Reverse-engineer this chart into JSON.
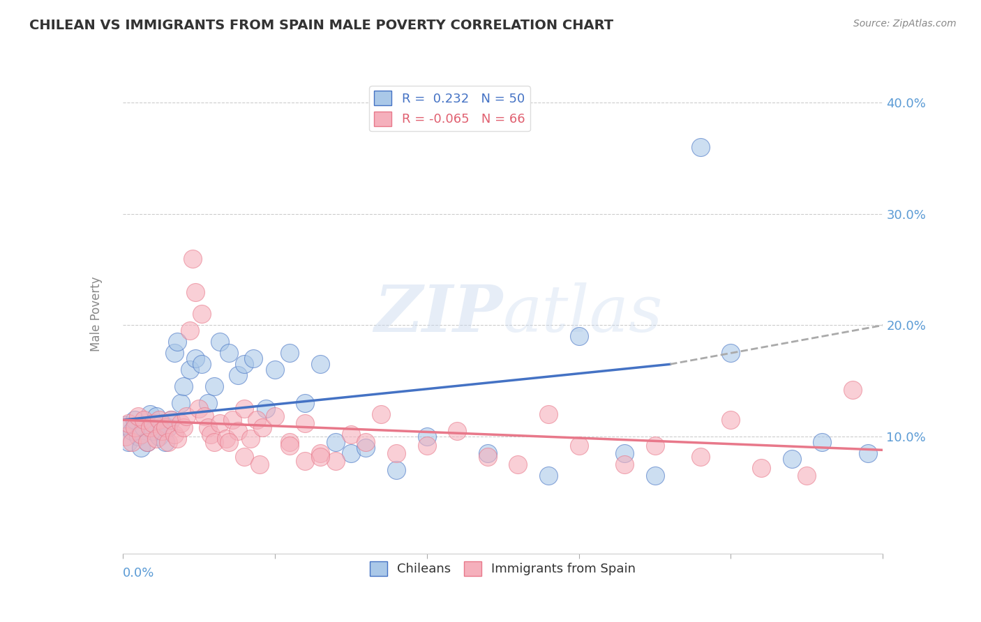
{
  "title": "CHILEAN VS IMMIGRANTS FROM SPAIN MALE POVERTY CORRELATION CHART",
  "source": "Source: ZipAtlas.com",
  "ylabel": "Male Poverty",
  "xlim": [
    0.0,
    0.25
  ],
  "ylim": [
    -0.005,
    0.425
  ],
  "yticks_right": [
    0.1,
    0.2,
    0.3,
    0.4
  ],
  "chilean_R": 0.232,
  "chilean_N": 50,
  "spain_R": -0.065,
  "spain_N": 66,
  "chilean_color": "#aac8e8",
  "spain_color": "#f5b0bc",
  "chilean_line_color": "#4472c4",
  "spain_line_color": "#e8788a",
  "legend_entries": [
    "Chileans",
    "Immigrants from Spain"
  ],
  "chilean_x": [
    0.001,
    0.002,
    0.003,
    0.004,
    0.005,
    0.006,
    0.007,
    0.008,
    0.009,
    0.01,
    0.011,
    0.012,
    0.013,
    0.014,
    0.015,
    0.016,
    0.017,
    0.018,
    0.019,
    0.02,
    0.022,
    0.024,
    0.026,
    0.028,
    0.03,
    0.032,
    0.035,
    0.038,
    0.04,
    0.043,
    0.047,
    0.05,
    0.055,
    0.06,
    0.065,
    0.07,
    0.075,
    0.08,
    0.09,
    0.1,
    0.12,
    0.14,
    0.15,
    0.165,
    0.175,
    0.19,
    0.2,
    0.22,
    0.23,
    0.245
  ],
  "chilean_y": [
    0.11,
    0.095,
    0.105,
    0.115,
    0.1,
    0.09,
    0.108,
    0.095,
    0.12,
    0.105,
    0.118,
    0.1,
    0.112,
    0.095,
    0.108,
    0.115,
    0.175,
    0.185,
    0.13,
    0.145,
    0.16,
    0.17,
    0.165,
    0.13,
    0.145,
    0.185,
    0.175,
    0.155,
    0.165,
    0.17,
    0.125,
    0.16,
    0.175,
    0.13,
    0.165,
    0.095,
    0.085,
    0.09,
    0.07,
    0.1,
    0.085,
    0.065,
    0.19,
    0.085,
    0.065,
    0.36,
    0.175,
    0.08,
    0.095,
    0.085
  ],
  "spain_x": [
    0.001,
    0.002,
    0.003,
    0.004,
    0.005,
    0.006,
    0.007,
    0.008,
    0.009,
    0.01,
    0.011,
    0.012,
    0.013,
    0.014,
    0.015,
    0.016,
    0.017,
    0.018,
    0.019,
    0.02,
    0.021,
    0.022,
    0.023,
    0.024,
    0.025,
    0.026,
    0.027,
    0.028,
    0.029,
    0.03,
    0.032,
    0.034,
    0.036,
    0.038,
    0.04,
    0.042,
    0.044,
    0.046,
    0.05,
    0.055,
    0.06,
    0.065,
    0.07,
    0.075,
    0.08,
    0.085,
    0.09,
    0.1,
    0.11,
    0.12,
    0.13,
    0.14,
    0.15,
    0.165,
    0.175,
    0.19,
    0.2,
    0.21,
    0.225,
    0.24,
    0.035,
    0.04,
    0.045,
    0.055,
    0.06,
    0.065
  ],
  "spain_y": [
    0.1,
    0.112,
    0.095,
    0.108,
    0.118,
    0.102,
    0.115,
    0.095,
    0.108,
    0.112,
    0.098,
    0.115,
    0.105,
    0.108,
    0.095,
    0.115,
    0.102,
    0.098,
    0.112,
    0.108,
    0.118,
    0.195,
    0.26,
    0.23,
    0.125,
    0.21,
    0.118,
    0.108,
    0.102,
    0.095,
    0.112,
    0.098,
    0.115,
    0.105,
    0.125,
    0.098,
    0.115,
    0.108,
    0.118,
    0.095,
    0.112,
    0.085,
    0.078,
    0.102,
    0.095,
    0.12,
    0.085,
    0.092,
    0.105,
    0.082,
    0.075,
    0.12,
    0.092,
    0.075,
    0.092,
    0.082,
    0.115,
    0.072,
    0.065,
    0.142,
    0.095,
    0.082,
    0.075,
    0.092,
    0.078,
    0.082
  ]
}
